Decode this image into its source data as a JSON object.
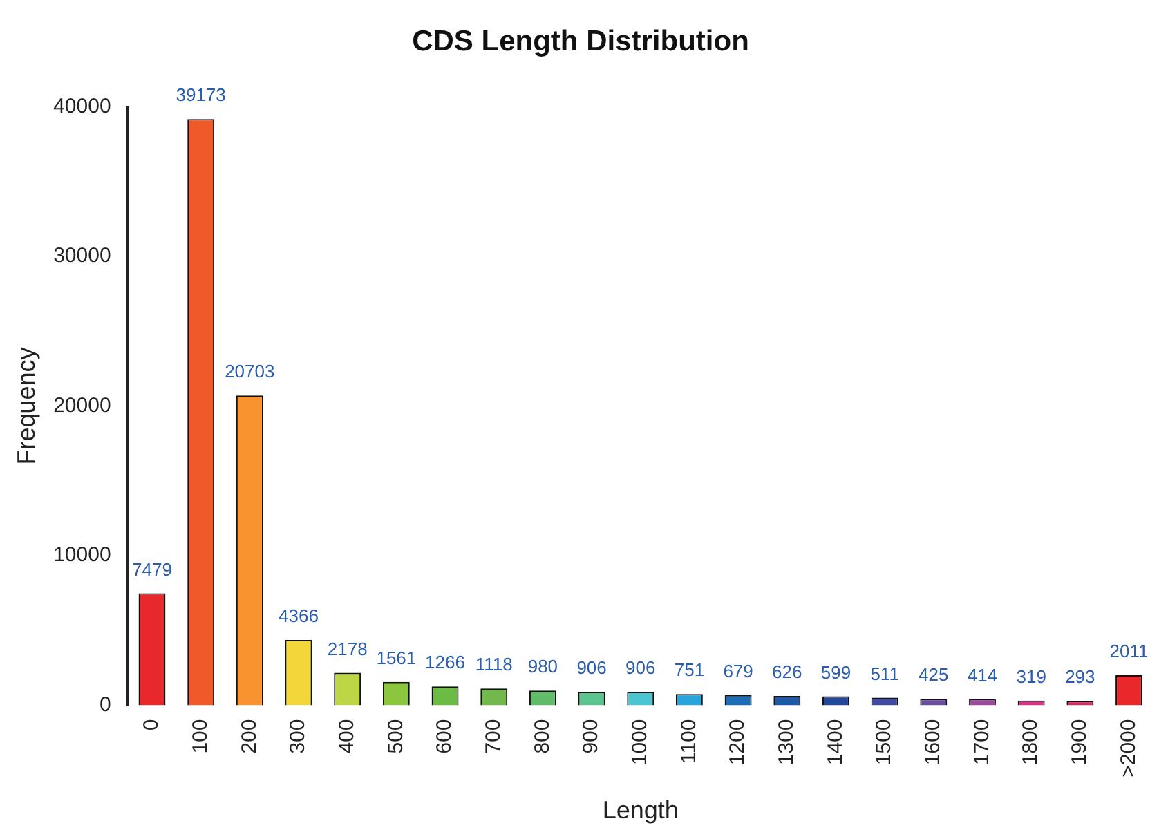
{
  "chart_data": {
    "type": "bar",
    "title": "CDS Length Distribution",
    "xlabel": "Length",
    "ylabel": "Frequency",
    "categories": [
      "0",
      "100",
      "200",
      "300",
      "400",
      "500",
      "600",
      "700",
      "800",
      "900",
      "1000",
      "1100",
      "1200",
      "1300",
      "1400",
      "1500",
      "1600",
      "1700",
      "1800",
      "1900",
      ">2000"
    ],
    "values": [
      7479,
      39173,
      20703,
      4366,
      2178,
      1561,
      1266,
      1118,
      980,
      906,
      906,
      751,
      679,
      626,
      599,
      511,
      425,
      414,
      319,
      293,
      2011
    ],
    "colors": [
      "#e8282b",
      "#f05a28",
      "#f7942f",
      "#f3d63a",
      "#bdd645",
      "#8cc63f",
      "#6cbb45",
      "#72b84c",
      "#62bb6a",
      "#5cc48f",
      "#4bc5d0",
      "#2aa5dc",
      "#1f6db6",
      "#1d59a6",
      "#25489a",
      "#3f4aa0",
      "#6a4f9f",
      "#9e4a9c",
      "#e0308a",
      "#d22b5d",
      "#e8282b"
    ],
    "ylim": [
      0,
      40000
    ],
    "yticks": [
      0,
      10000,
      20000,
      30000,
      40000
    ],
    "grid": false,
    "legend": false,
    "data_labels": true
  }
}
